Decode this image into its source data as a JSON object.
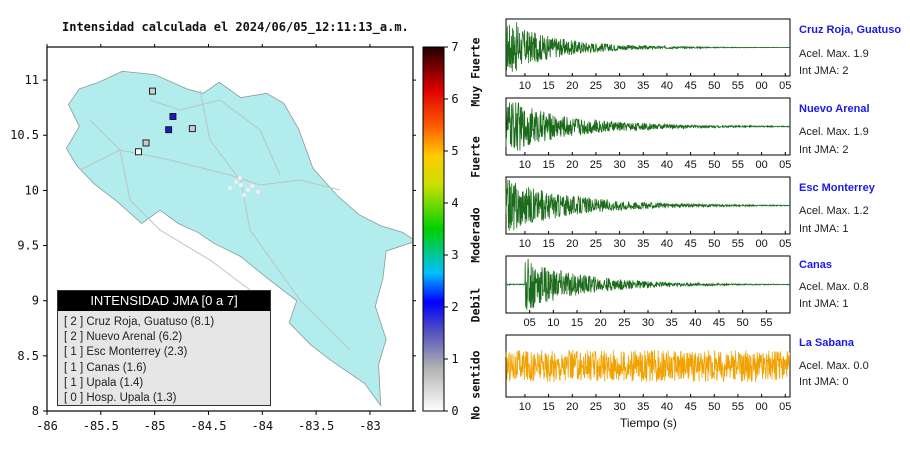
{
  "map": {
    "title": "Intensidad calculada el 2024/06/05_12:11:13_a.m.",
    "xticks": [
      "-86",
      "-85.5",
      "-85",
      "-84.5",
      "-84",
      "-83.5",
      "-83"
    ],
    "yticks": [
      "11",
      "10.5",
      "10",
      "9.5",
      "9",
      "8.5",
      "8"
    ],
    "xlim": [
      -86,
      -82.6
    ],
    "ylim": [
      8,
      11.3
    ],
    "land_color": "#b2ecec",
    "colorbar": {
      "ticks": [
        "0",
        "1",
        "2",
        "3",
        "4",
        "5",
        "6",
        "7"
      ],
      "labels": [
        "No sentido",
        "Debil",
        "Moderado",
        "Fuerte",
        "Muy Fuerte"
      ],
      "range": [
        0,
        7
      ]
    },
    "legend": {
      "title": "INTENSIDAD JMA [0 a 7]",
      "items": [
        {
          "label": "[ 2 ]  Cruz Roja, Guatuso (8.1)"
        },
        {
          "label": "[ 2 ]  Nuevo Arenal (6.2)"
        },
        {
          "label": "[ 1 ]  Esc Monterrey (2.3)"
        },
        {
          "label": "[ 1 ]  Canas (1.6)"
        },
        {
          "label": "[ 1 ]  Upala (1.4)"
        },
        {
          "label": "[ 0 ]  Hosp. Upala (1.3)"
        }
      ]
    }
  },
  "chart_data": [
    {
      "type": "scatter",
      "title": "Intensidad calculada el 2024/06/05_12:11:13_a.m.",
      "xlim": [
        -86,
        -82.6
      ],
      "ylim": [
        8,
        11.3
      ],
      "points": [
        {
          "name": "Cruz Roja, Guatuso",
          "x": -84.83,
          "y": 10.67,
          "intensity": 2
        },
        {
          "name": "Nuevo Arenal",
          "x": -84.87,
          "y": 10.55,
          "intensity": 2
        },
        {
          "name": "Esc Monterrey",
          "x": -84.65,
          "y": 10.56,
          "intensity": 1
        },
        {
          "name": "Canas",
          "x": -85.08,
          "y": 10.43,
          "intensity": 1
        },
        {
          "name": "Upala",
          "x": -85.02,
          "y": 10.9,
          "intensity": 1
        },
        {
          "name": "Hosp. Upala",
          "x": -85.15,
          "y": 10.35,
          "intensity": 0
        }
      ]
    }
  ],
  "traces": {
    "xlabel": "Tiempo (s)",
    "items": [
      {
        "name": "Cruz Roja, Guatuso",
        "accel": "Acel. Max. 1.9",
        "jma": "Int JMA: 2",
        "color": "#1a6b1a",
        "ticks": [
          "10",
          "15",
          "20",
          "25",
          "30",
          "35",
          "40",
          "45",
          "50",
          "55",
          "00",
          "05"
        ],
        "first_tick": 10,
        "t0": 6,
        "onset": 0.0,
        "amp": 1.0,
        "decay": 0.09
      },
      {
        "name": "Nuevo Arenal",
        "accel": "Acel. Max. 1.9",
        "jma": "Int JMA: 2",
        "color": "#1a6b1a",
        "ticks": [
          "10",
          "15",
          "20",
          "25",
          "30",
          "35",
          "40",
          "45",
          "50",
          "55",
          "00",
          "05"
        ],
        "first_tick": 10,
        "t0": 6,
        "onset": 0.0,
        "amp": 1.0,
        "decay": 0.07
      },
      {
        "name": "Esc Monterrey",
        "accel": "Acel. Max. 1.2",
        "jma": "Int JMA: 1",
        "color": "#1a6b1a",
        "ticks": [
          "10",
          "15",
          "20",
          "25",
          "30",
          "35",
          "40",
          "45",
          "50",
          "55",
          "00",
          "05"
        ],
        "first_tick": 10,
        "t0": 6,
        "onset": 0.0,
        "amp": 1.0,
        "decay": 0.07
      },
      {
        "name": "Canas",
        "accel": "Acel. Max. 0.8",
        "jma": "Int JMA: 1",
        "color": "#1a6b1a",
        "ticks": [
          "05",
          "10",
          "15",
          "20",
          "25",
          "30",
          "35",
          "40",
          "45",
          "50",
          "55"
        ],
        "first_tick": 5,
        "t0": 0,
        "onset": 4,
        "amp": 1.0,
        "decay": 0.08
      },
      {
        "name": "La Sabana",
        "accel": "Acel. Max. 0.0",
        "jma": "Int JMA: 0",
        "color": "#f2a200",
        "ticks": [
          "10",
          "15",
          "20",
          "25",
          "30",
          "35",
          "40",
          "45",
          "50",
          "55",
          "00",
          "05"
        ],
        "first_tick": 10,
        "t0": 6,
        "onset": 0.0,
        "amp": 0.55,
        "decay": 0.0
      }
    ]
  }
}
